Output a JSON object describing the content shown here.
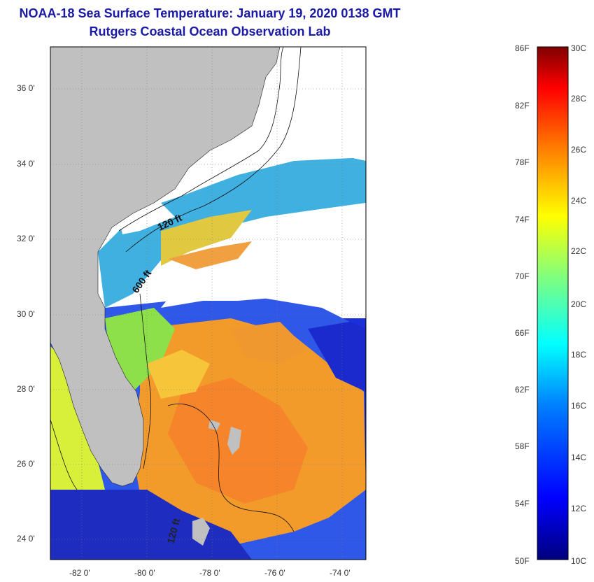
{
  "title": {
    "line1": "NOAA-18 Sea Surface Temperature:  January 19, 2020 0138 GMT",
    "line2": "Rutgers Coastal Ocean Observation Lab"
  },
  "map": {
    "lat_labels": [
      "36 0'",
      "34 0'",
      "32 0'",
      "30 0'",
      "28 0'",
      "26 0'",
      "24 0'"
    ],
    "lon_labels": [
      "-82 0'",
      "-80 0'",
      "-78 0'",
      "-76 0'",
      "-74 0'"
    ],
    "isobath_labels": [
      "120 ft",
      "600 ft",
      "120 ft"
    ]
  },
  "colorbar": {
    "f_labels": [
      "86F",
      "82F",
      "78F",
      "74F",
      "70F",
      "66F",
      "62F",
      "58F",
      "54F",
      "50F"
    ],
    "c_labels": [
      "30C",
      "28C",
      "26C",
      "24C",
      "22C",
      "20C",
      "18C",
      "16C",
      "14C",
      "12C",
      "10C"
    ],
    "colors": [
      "#00007f",
      "#0000ff",
      "#007fff",
      "#00ffff",
      "#7fff7f",
      "#ffff00",
      "#ff7f00",
      "#ff0000",
      "#7f0000"
    ]
  },
  "colors": {
    "land": "#c0c0c0",
    "cloud": "#ffffff",
    "title": "#1a1aa6"
  }
}
